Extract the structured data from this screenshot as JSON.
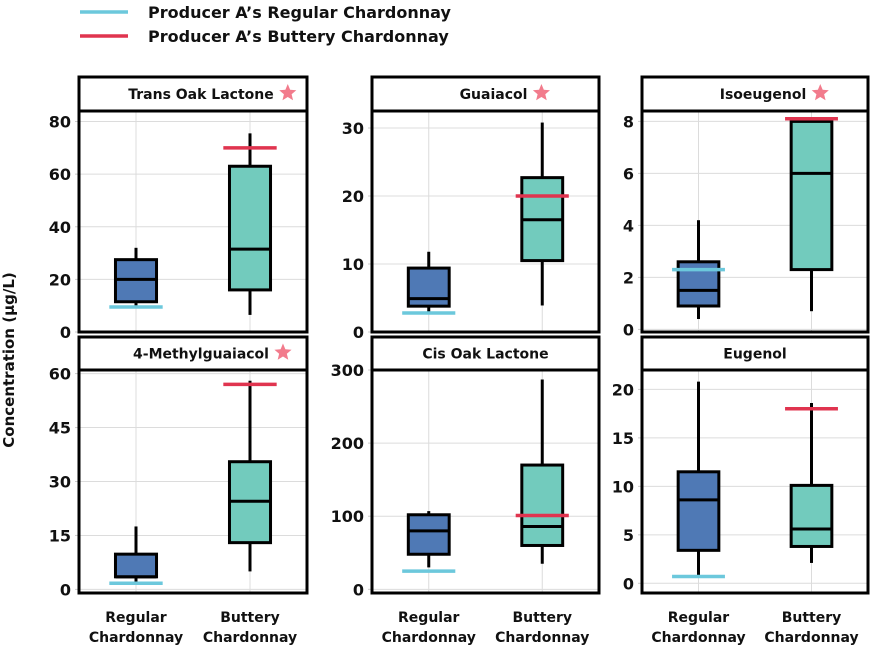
{
  "chart_data": {
    "type": "box",
    "ylabel": "Concentration (µg/L)",
    "categories": [
      "Regular\nChardonnay",
      "Buttery\nChardonnay"
    ],
    "category_lines": [
      [
        "Regular",
        "Chardonnay"
      ],
      [
        "Buttery",
        "Chardonnay"
      ]
    ],
    "box_colors": [
      "#4f79b5",
      "#72cbbd"
    ],
    "legend": [
      {
        "label": "Producer A’s Regular Chardonnay",
        "color": "#6cc8dc"
      },
      {
        "label": "Producer A’s Buttery Chardonnay",
        "color": "#e0344f"
      }
    ],
    "star_color": "#f27b8c",
    "grid": true,
    "panels": [
      {
        "title": "Trans Oak Lactone",
        "star": true,
        "ylim": [
          0,
          84
        ],
        "yticks": [
          0,
          20,
          40,
          60,
          80
        ],
        "boxes": [
          {
            "min": 10,
            "q1": 11.5,
            "median": 20,
            "q3": 27.5,
            "max": 32
          },
          {
            "min": 6.5,
            "q1": 16,
            "median": 31.5,
            "q3": 63,
            "max": 75.5
          }
        ],
        "reference": {
          "regular": 9.5,
          "buttery": 70
        }
      },
      {
        "title": "Guaiacol",
        "star": true,
        "ylim": [
          0,
          32.5
        ],
        "yticks": [
          0,
          10,
          20,
          30
        ],
        "boxes": [
          {
            "min": 2.7,
            "q1": 3.8,
            "median": 4.9,
            "q3": 9.4,
            "max": 11.8
          },
          {
            "min": 3.9,
            "q1": 10.5,
            "median": 16.5,
            "q3": 22.7,
            "max": 30.8
          }
        ],
        "reference": {
          "regular": 2.8,
          "buttery": 20
        }
      },
      {
        "title": "Isoeugenol",
        "star": true,
        "ylim": [
          -0.1,
          8.4
        ],
        "yticks": [
          0,
          2,
          4,
          6,
          8
        ],
        "boxes": [
          {
            "min": 0.4,
            "q1": 0.9,
            "median": 1.5,
            "q3": 2.6,
            "max": 4.2
          },
          {
            "min": 0.7,
            "q1": 2.3,
            "median": 6.0,
            "q3": 8.0,
            "max": 8.0
          }
        ],
        "reference": {
          "regular": 2.3,
          "buttery": 8.1
        }
      },
      {
        "title": "4-Methylguaiacol",
        "star": true,
        "ylim": [
          -1,
          61
        ],
        "yticks": [
          0,
          15,
          30,
          45,
          60
        ],
        "boxes": [
          {
            "min": 2,
            "q1": 3.5,
            "median": 3.5,
            "q3": 9.8,
            "max": 17.5
          },
          {
            "min": 5,
            "q1": 13,
            "median": 24.5,
            "q3": 35.5,
            "max": 58
          }
        ],
        "reference": {
          "regular": 1.7,
          "buttery": 57
        }
      },
      {
        "title": "Cis Oak Lactone",
        "star": false,
        "ylim": [
          -5,
          300
        ],
        "yticks": [
          0,
          100,
          200,
          300
        ],
        "boxes": [
          {
            "min": 30,
            "q1": 48,
            "median": 80,
            "q3": 102,
            "max": 107
          },
          {
            "min": 35,
            "q1": 60,
            "median": 86,
            "q3": 170,
            "max": 287
          }
        ],
        "reference": {
          "regular": 25,
          "buttery": 101
        }
      },
      {
        "title": "Eugenol",
        "star": false,
        "ylim": [
          -1,
          22
        ],
        "yticks": [
          0,
          5,
          10,
          15,
          20
        ],
        "boxes": [
          {
            "min": 0.8,
            "q1": 3.4,
            "median": 8.6,
            "q3": 11.5,
            "max": 20.8
          },
          {
            "min": 2.1,
            "q1": 3.8,
            "median": 5.6,
            "q3": 10.1,
            "max": 18.6
          }
        ],
        "reference": {
          "regular": 0.7,
          "buttery": 18
        }
      }
    ]
  }
}
